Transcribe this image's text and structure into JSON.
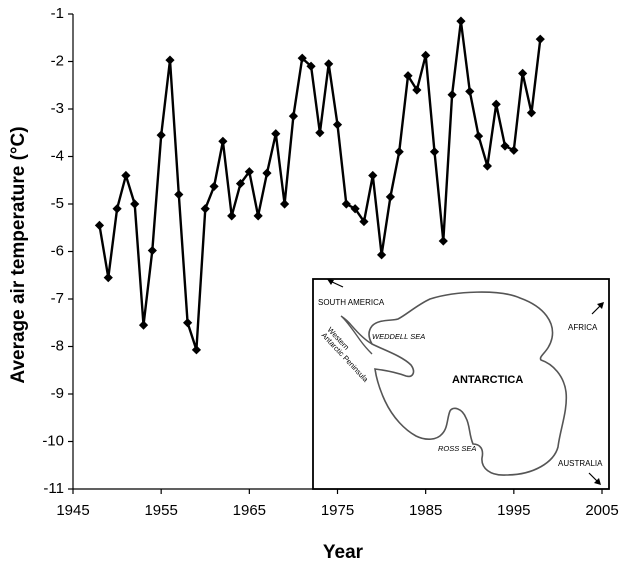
{
  "chart_data": {
    "type": "line",
    "title": "",
    "xlabel": "Year",
    "ylabel": "Average air temperature (°C)",
    "xlim": [
      1945,
      2005
    ],
    "ylim": [
      -11,
      -1
    ],
    "x_ticks": [
      "1945",
      "1955",
      "1965",
      "1975",
      "1985",
      "1995",
      "2005"
    ],
    "y_ticks": [
      "-1",
      "-2",
      "-3",
      "-4",
      "-5",
      "-6",
      "-7",
      "-8",
      "-9",
      "-10",
      "-11"
    ],
    "grid": false,
    "legend": "none",
    "marker": "diamond",
    "line_color": "#000000",
    "series": [
      {
        "x": [
          1948,
          1949,
          1950,
          1951,
          1952,
          1953,
          1954,
          1955,
          1956,
          1957,
          1958,
          1959,
          1960,
          1961,
          1962,
          1963,
          1964,
          1965,
          1966,
          1967,
          1968,
          1969,
          1970,
          1971,
          1972,
          1973,
          1974,
          1975,
          1976,
          1977,
          1978,
          1979,
          1980,
          1981,
          1982,
          1983,
          1984,
          1985,
          1986,
          1987,
          1988,
          1989,
          1990,
          1991,
          1992,
          1993,
          1994,
          1995,
          1996,
          1997,
          1998
        ],
        "values": [
          -5.45,
          -6.55,
          -5.1,
          -4.4,
          -5.0,
          -7.55,
          -5.98,
          -3.55,
          -1.97,
          -4.8,
          -7.5,
          -8.07,
          -5.1,
          -4.63,
          -3.68,
          -5.25,
          -4.57,
          -4.32,
          -5.25,
          -4.35,
          -3.52,
          -5.0,
          -3.15,
          -1.93,
          -2.1,
          -3.5,
          -2.05,
          -3.33,
          -5.0,
          -5.1,
          -5.37,
          -4.4,
          -6.07,
          -4.85,
          -3.9,
          -2.3,
          -2.6,
          -1.87,
          -3.9,
          -5.78,
          -2.7,
          -1.15,
          -2.63,
          -3.57,
          -4.2,
          -2.9,
          -3.78,
          -3.87,
          -2.25,
          -3.08,
          -1.53
        ]
      }
    ]
  },
  "inset_map": {
    "labels": {
      "south_america": "SOUTH AMERICA",
      "weddell_sea": "WEDDELL SEA",
      "africa": "AFRICA",
      "peninsula_line1": "Western",
      "peninsula_line2": "Antarctic Peninsula",
      "antarctica": "ANTARCTICA",
      "ross_sea": "ROSS SEA",
      "australia": "AUSTRALIA"
    }
  }
}
